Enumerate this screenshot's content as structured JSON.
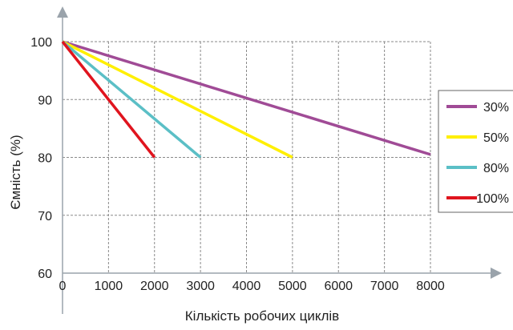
{
  "chart_data": {
    "type": "line",
    "xlabel": "Кількість робочих циклів",
    "ylabel": "Ємність (%)",
    "xlim": [
      0,
      8000
    ],
    "ylim": [
      60,
      100
    ],
    "xticks": [
      0,
      1000,
      2000,
      3000,
      4000,
      5000,
      6000,
      7000,
      8000
    ],
    "yticks": [
      60,
      70,
      80,
      90,
      100
    ],
    "grid": true,
    "legend_position": "right",
    "series": [
      {
        "name": "30%",
        "color": "#a04b96",
        "x": [
          0,
          8000
        ],
        "y": [
          100,
          80.5
        ]
      },
      {
        "name": "50%",
        "color": "#ffef00",
        "x": [
          0,
          5000
        ],
        "y": [
          100,
          80
        ]
      },
      {
        "name": "80%",
        "color": "#5bbfc6",
        "x": [
          0,
          3000
        ],
        "y": [
          100,
          80
        ]
      },
      {
        "name": "100%",
        "color": "#e0141e",
        "x": [
          0,
          2000
        ],
        "y": [
          100,
          80
        ]
      }
    ],
    "colors": {
      "axis": "#9aa3ab",
      "grid": "#8a8a8a",
      "text": "#222222"
    }
  }
}
